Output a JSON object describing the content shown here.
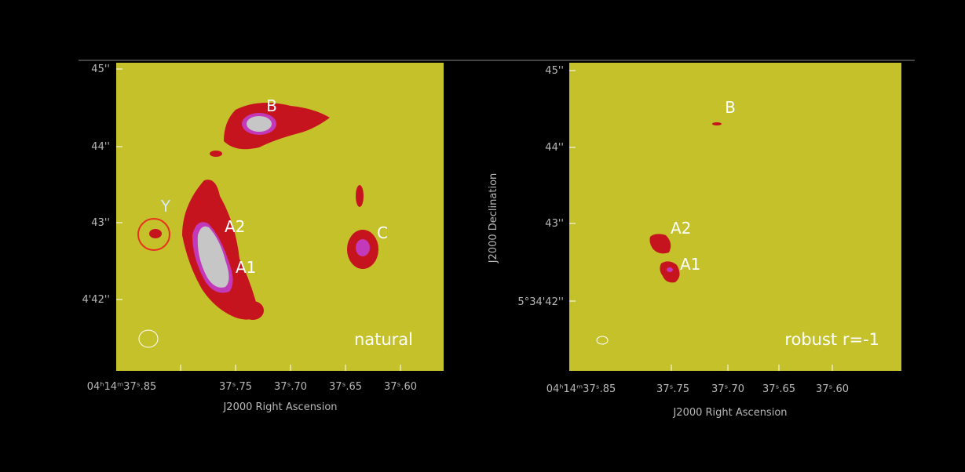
{
  "panels": [
    {
      "y_ticks": [
        "45''",
        "44''",
        "43''",
        "4'42''"
      ],
      "x_ticks": [
        "04ʰ14ᵐ37ˢ.85",
        "37ˢ.75",
        "37ˢ.70",
        "37ˢ.65",
        "37ˢ.60"
      ],
      "x_label": "J2000 Right Ascension",
      "annotations": [
        "B",
        "Y",
        "A2",
        "A1",
        "C"
      ],
      "weighting": "natural"
    },
    {
      "y_ticks": [
        "45''",
        "44''",
        "43''",
        "5°34'42''"
      ],
      "x_ticks": [
        "04ʰ14ᵐ37ˢ.85",
        "37ˢ.75",
        "37ˢ.70",
        "37ˢ.65",
        "37ˢ.60"
      ],
      "x_label": "J2000 Right Ascension",
      "y_label": "J2000 Declination",
      "annotations": [
        "B",
        "A2",
        "A1"
      ],
      "weighting": "robust r=-1"
    }
  ]
}
